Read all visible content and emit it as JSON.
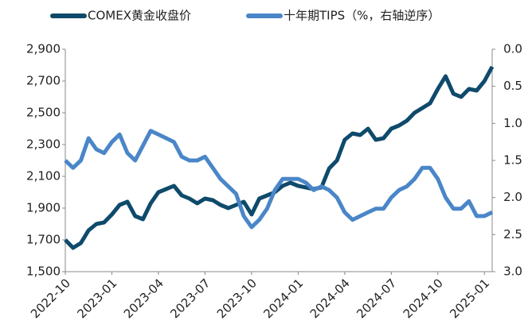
{
  "chart_data": {
    "type": "line",
    "categories": [
      "2022-10",
      null,
      null,
      null,
      null,
      null,
      "2023-01",
      null,
      null,
      null,
      null,
      null,
      "2023-04",
      null,
      null,
      null,
      null,
      null,
      "2023-07",
      null,
      null,
      null,
      null,
      null,
      "2023-10",
      null,
      null,
      null,
      null,
      null,
      "2024-01",
      null,
      null,
      null,
      null,
      null,
      "2024-04",
      null,
      null,
      null,
      null,
      null,
      "2024-07",
      null,
      null,
      null,
      null,
      null,
      "2024-10",
      null,
      null,
      null,
      null,
      null,
      "2025-01",
      null
    ],
    "series": [
      {
        "name": "COMEX黄金收盘价",
        "color": "#0f4a6b",
        "values": [
          1700,
          1650,
          1680,
          1760,
          1800,
          1810,
          1860,
          1920,
          1940,
          1850,
          1830,
          1930,
          2000,
          2020,
          2040,
          1980,
          1960,
          1930,
          1960,
          1950,
          1920,
          1900,
          1920,
          1940,
          1860,
          1960,
          1980,
          2000,
          2040,
          2060,
          2040,
          2030,
          2020,
          2030,
          2150,
          2200,
          2330,
          2370,
          2360,
          2400,
          2330,
          2340,
          2400,
          2420,
          2450,
          2500,
          2530,
          2560,
          2650,
          2730,
          2620,
          2600,
          2650,
          2640,
          2700,
          2790
        ]
      },
      {
        "name": "十年期TIPS（%，右轴逆序）",
        "color": "#4a86c8",
        "axis": "y2",
        "values": [
          1.5,
          1.6,
          1.5,
          1.2,
          1.35,
          1.4,
          1.25,
          1.15,
          1.4,
          1.5,
          1.3,
          1.1,
          1.15,
          1.2,
          1.25,
          1.45,
          1.5,
          1.5,
          1.45,
          1.6,
          1.75,
          1.85,
          1.95,
          2.25,
          2.4,
          2.3,
          2.15,
          1.9,
          1.75,
          1.75,
          1.75,
          1.8,
          1.9,
          1.85,
          1.9,
          2.0,
          2.2,
          2.3,
          2.25,
          2.2,
          2.15,
          2.15,
          2.0,
          1.9,
          1.85,
          1.75,
          1.6,
          1.6,
          1.75,
          2.0,
          2.15,
          2.15,
          2.05,
          2.25,
          2.25,
          2.2
        ]
      }
    ],
    "ylim": [
      1500,
      2900
    ],
    "yticks": [
      {
        "value": 1500,
        "label": "1,500"
      },
      {
        "value": 1700,
        "label": "1,700"
      },
      {
        "value": 1900,
        "label": "1,900"
      },
      {
        "value": 2100,
        "label": "2,100"
      },
      {
        "value": 2300,
        "label": "2,300"
      },
      {
        "value": 2500,
        "label": "2,500"
      },
      {
        "value": 2700,
        "label": "2,700"
      },
      {
        "value": 2900,
        "label": "2,900"
      }
    ],
    "y2lim": [
      0,
      3
    ],
    "y2ticks": [
      {
        "value": 0,
        "label": "0.0"
      },
      {
        "value": 0.5,
        "label": "0.5"
      },
      {
        "value": 1,
        "label": "1.0"
      },
      {
        "value": 1.5,
        "label": "1.5"
      },
      {
        "value": 2,
        "label": "2.0"
      },
      {
        "value": 2.5,
        "label": "2.5"
      },
      {
        "value": 3,
        "label": "3.0"
      }
    ],
    "y2_reversed": true,
    "legend": "top"
  }
}
